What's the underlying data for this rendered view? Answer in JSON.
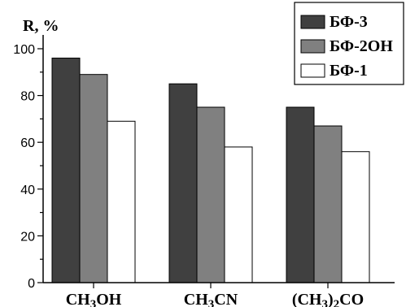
{
  "chart_data": {
    "type": "bar",
    "ylabel": "R, %",
    "ylim": [
      0,
      100
    ],
    "yticks": [
      0,
      20,
      40,
      60,
      80,
      100
    ],
    "categories": [
      {
        "parts": [
          {
            "t": "CH"
          },
          {
            "t": "3",
            "sub": true
          },
          {
            "t": "OH"
          }
        ]
      },
      {
        "parts": [
          {
            "t": "CH"
          },
          {
            "t": "3",
            "sub": true
          },
          {
            "t": "CN"
          }
        ]
      },
      {
        "parts": [
          {
            "t": "(CH"
          },
          {
            "t": "3",
            "sub": true
          },
          {
            "t": ")"
          },
          {
            "t": "2",
            "sub": true
          },
          {
            "t": "CO"
          }
        ]
      }
    ],
    "series": [
      {
        "name": "БФ-3",
        "color": "#404040",
        "values": [
          96,
          85,
          75
        ]
      },
      {
        "name": "БФ-2ОН",
        "color": "#808080",
        "values": [
          89,
          75,
          67
        ]
      },
      {
        "name": "БФ-1",
        "color": "#ffffff",
        "values": [
          69,
          58,
          56
        ]
      }
    ],
    "legend_position": "top-right",
    "grid": false
  }
}
